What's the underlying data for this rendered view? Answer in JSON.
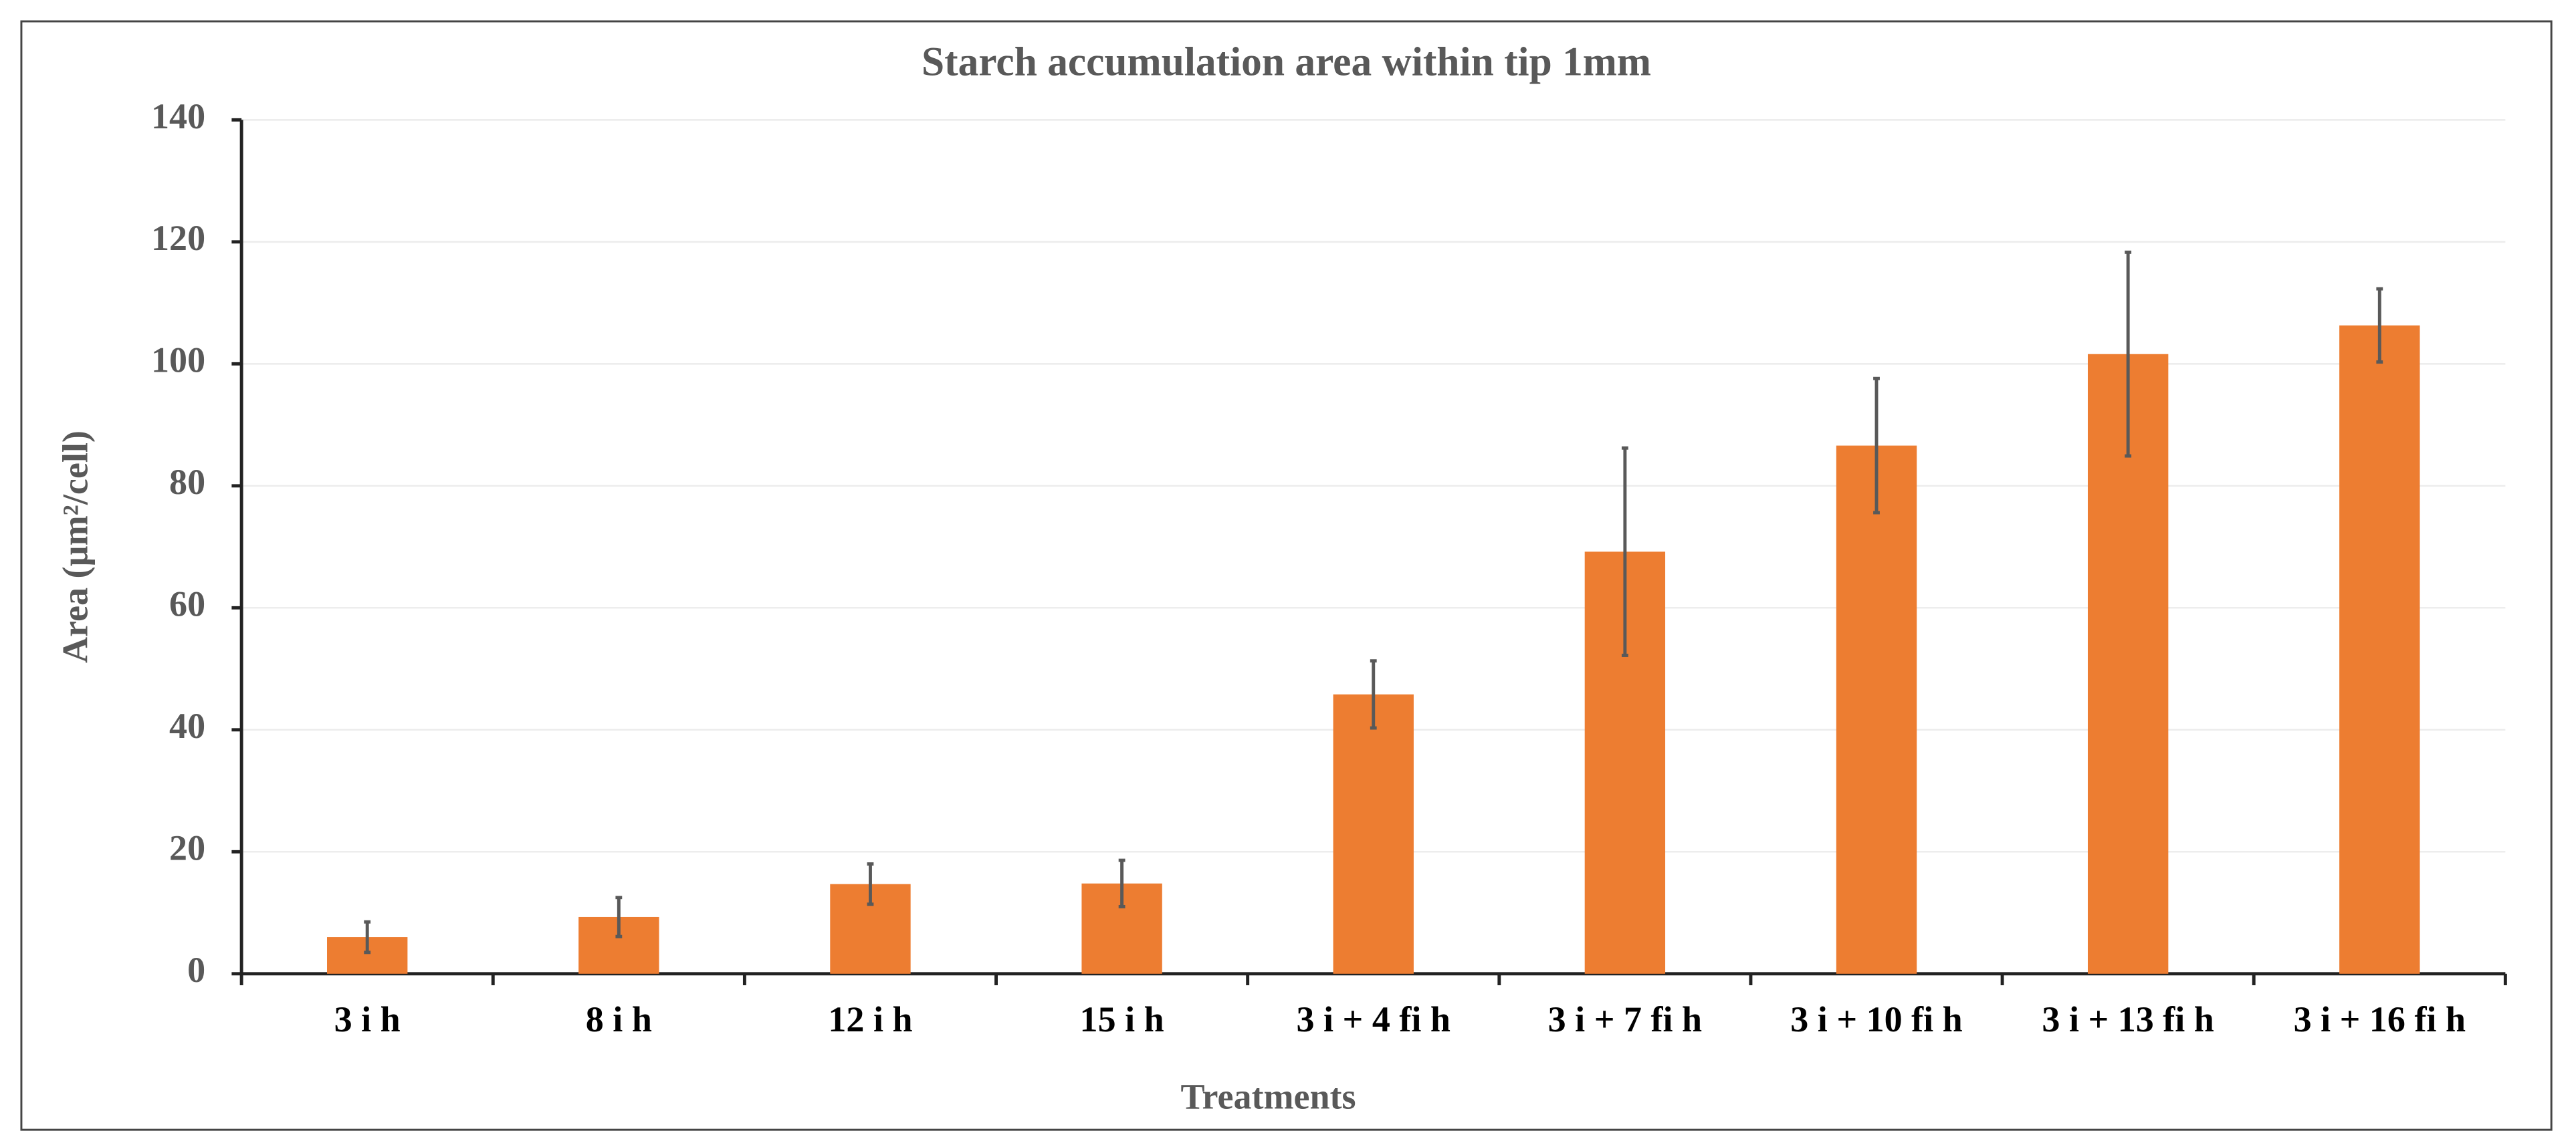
{
  "chart_data": {
    "type": "bar",
    "title": "Starch accumulation area within tip 1mm",
    "x_label": "Treatments",
    "y_label": "Area (µm²/cell)",
    "categories": [
      "3 i h",
      "8 i h",
      "12 i h",
      "15 i h",
      "3 i + 4 fi h",
      "3 i + 7 fi h",
      "3 i + 10 fi h",
      "3 i + 13 fi h",
      "3 i + 16 fi h"
    ],
    "values": [
      6,
      9.3,
      14.7,
      14.8,
      45.8,
      69.2,
      86.6,
      101.6,
      106.3
    ],
    "errors": [
      2.5,
      3.2,
      3.3,
      3.8,
      5.5,
      17,
      11,
      16.7,
      6
    ],
    "color": "#ed7d31",
    "ylim": [
      0,
      140
    ],
    "yticks": [
      0,
      20,
      40,
      60,
      80,
      100,
      120,
      140
    ],
    "grid": true
  }
}
